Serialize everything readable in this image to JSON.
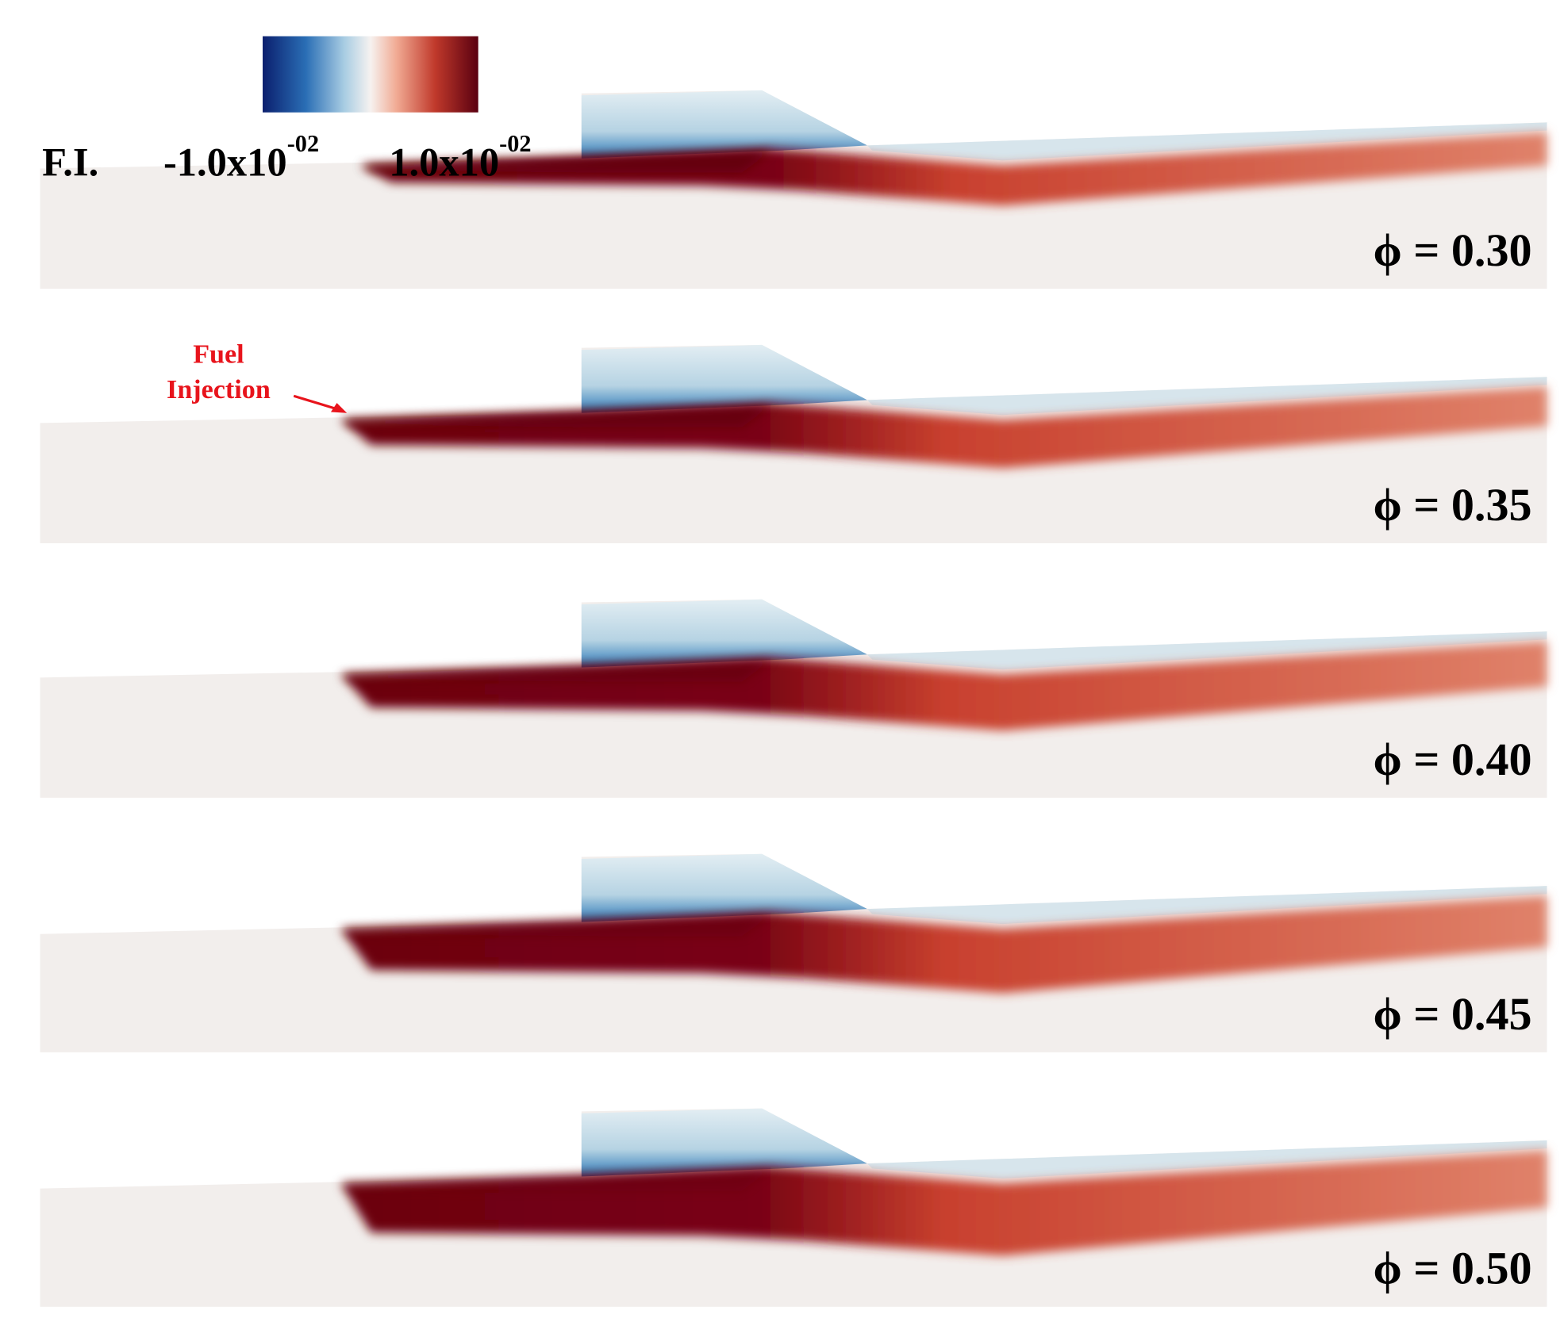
{
  "colorbar": {
    "label": "F.I.",
    "min_label": {
      "base": "-1.0x10",
      "exponent": "-02"
    },
    "max_label": {
      "base": "1.0x10",
      "exponent": "-02"
    }
  },
  "annotation": {
    "lines": [
      "Fuel",
      "Injection"
    ]
  },
  "panels": [
    {
      "label": "ϕ = 0.30"
    },
    {
      "label": "ϕ = 0.35"
    },
    {
      "label": "ϕ = 0.40"
    },
    {
      "label": "ϕ = 0.45"
    },
    {
      "label": "ϕ = 0.50"
    }
  ]
}
